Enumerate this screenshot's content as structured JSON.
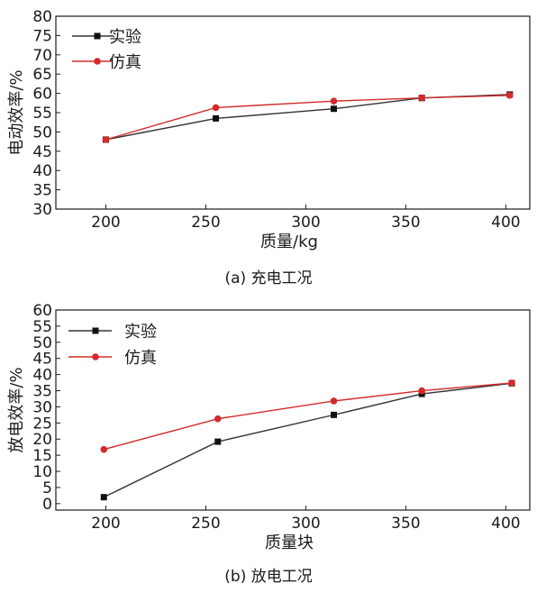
{
  "chart_data": [
    {
      "type": "line",
      "caption": "(a) 充电工况",
      "xlabel": "质量/kg",
      "ylabel": "电动效率/%",
      "xlim": [
        175,
        412
      ],
      "ylim": [
        30,
        80
      ],
      "x_ticks": [
        200,
        250,
        300,
        350,
        400
      ],
      "y_ticks": [
        30,
        35,
        40,
        45,
        50,
        55,
        60,
        65,
        70,
        75,
        80
      ],
      "grid": false,
      "legend_position": "top-left",
      "x": [
        200,
        255,
        314,
        358,
        402
      ],
      "series": [
        {
          "name": "实验",
          "color": "#333333",
          "marker": "square",
          "values": [
            48,
            53.5,
            56,
            58.8,
            59.7
          ]
        },
        {
          "name": "仿真",
          "color": "#d42a2a",
          "marker": "circle",
          "values": [
            48,
            56.3,
            58,
            58.8,
            59.5
          ]
        }
      ]
    },
    {
      "type": "line",
      "caption": "(b) 放电工况",
      "xlabel": "质量块",
      "ylabel": "放电效率/%",
      "xlim": [
        175,
        412
      ],
      "ylim": [
        -2,
        60
      ],
      "x_ticks": [
        200,
        250,
        300,
        350,
        400
      ],
      "y_ticks": [
        0,
        5,
        10,
        15,
        20,
        25,
        30,
        35,
        40,
        45,
        50,
        55,
        60
      ],
      "grid": false,
      "legend_position": "top-left",
      "x": [
        199,
        256,
        314,
        358,
        403
      ],
      "series": [
        {
          "name": "实验",
          "color": "#333333",
          "marker": "square",
          "values": [
            2,
            19.2,
            27.5,
            34,
            37.3
          ]
        },
        {
          "name": "仿真",
          "color": "#d42a2a",
          "marker": "circle",
          "values": [
            16.8,
            26.3,
            31.8,
            35,
            37.4
          ]
        }
      ]
    }
  ]
}
